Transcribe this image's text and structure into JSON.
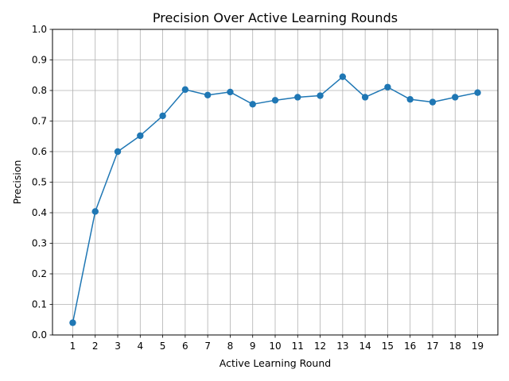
{
  "chart_data": {
    "type": "line",
    "title": "Precision Over Active Learning Rounds",
    "xlabel": "Active Learning Round",
    "ylabel": "Precision",
    "x": [
      1,
      2,
      3,
      4,
      5,
      6,
      7,
      8,
      9,
      10,
      11,
      12,
      13,
      14,
      15,
      16,
      17,
      18,
      19
    ],
    "series": [
      {
        "values": [
          0.04,
          0.404,
          0.6,
          0.652,
          0.717,
          0.803,
          0.785,
          0.795,
          0.755,
          0.768,
          0.778,
          0.783,
          0.845,
          0.778,
          0.811,
          0.771,
          0.762,
          0.778,
          0.793
        ],
        "color": "#1f77b4",
        "marker": "circle"
      }
    ],
    "xticks": [
      "1",
      "2",
      "3",
      "4",
      "5",
      "6",
      "7",
      "8",
      "9",
      "10",
      "11",
      "12",
      "13",
      "14",
      "15",
      "16",
      "17",
      "18",
      "19"
    ],
    "yticks": [
      "0.0",
      "0.1",
      "0.2",
      "0.3",
      "0.4",
      "0.5",
      "0.6",
      "0.7",
      "0.8",
      "0.9",
      "1.0"
    ],
    "xlim": [
      0.1,
      19.9
    ],
    "ylim": [
      0,
      1.0
    ],
    "grid": true,
    "legend": false
  }
}
